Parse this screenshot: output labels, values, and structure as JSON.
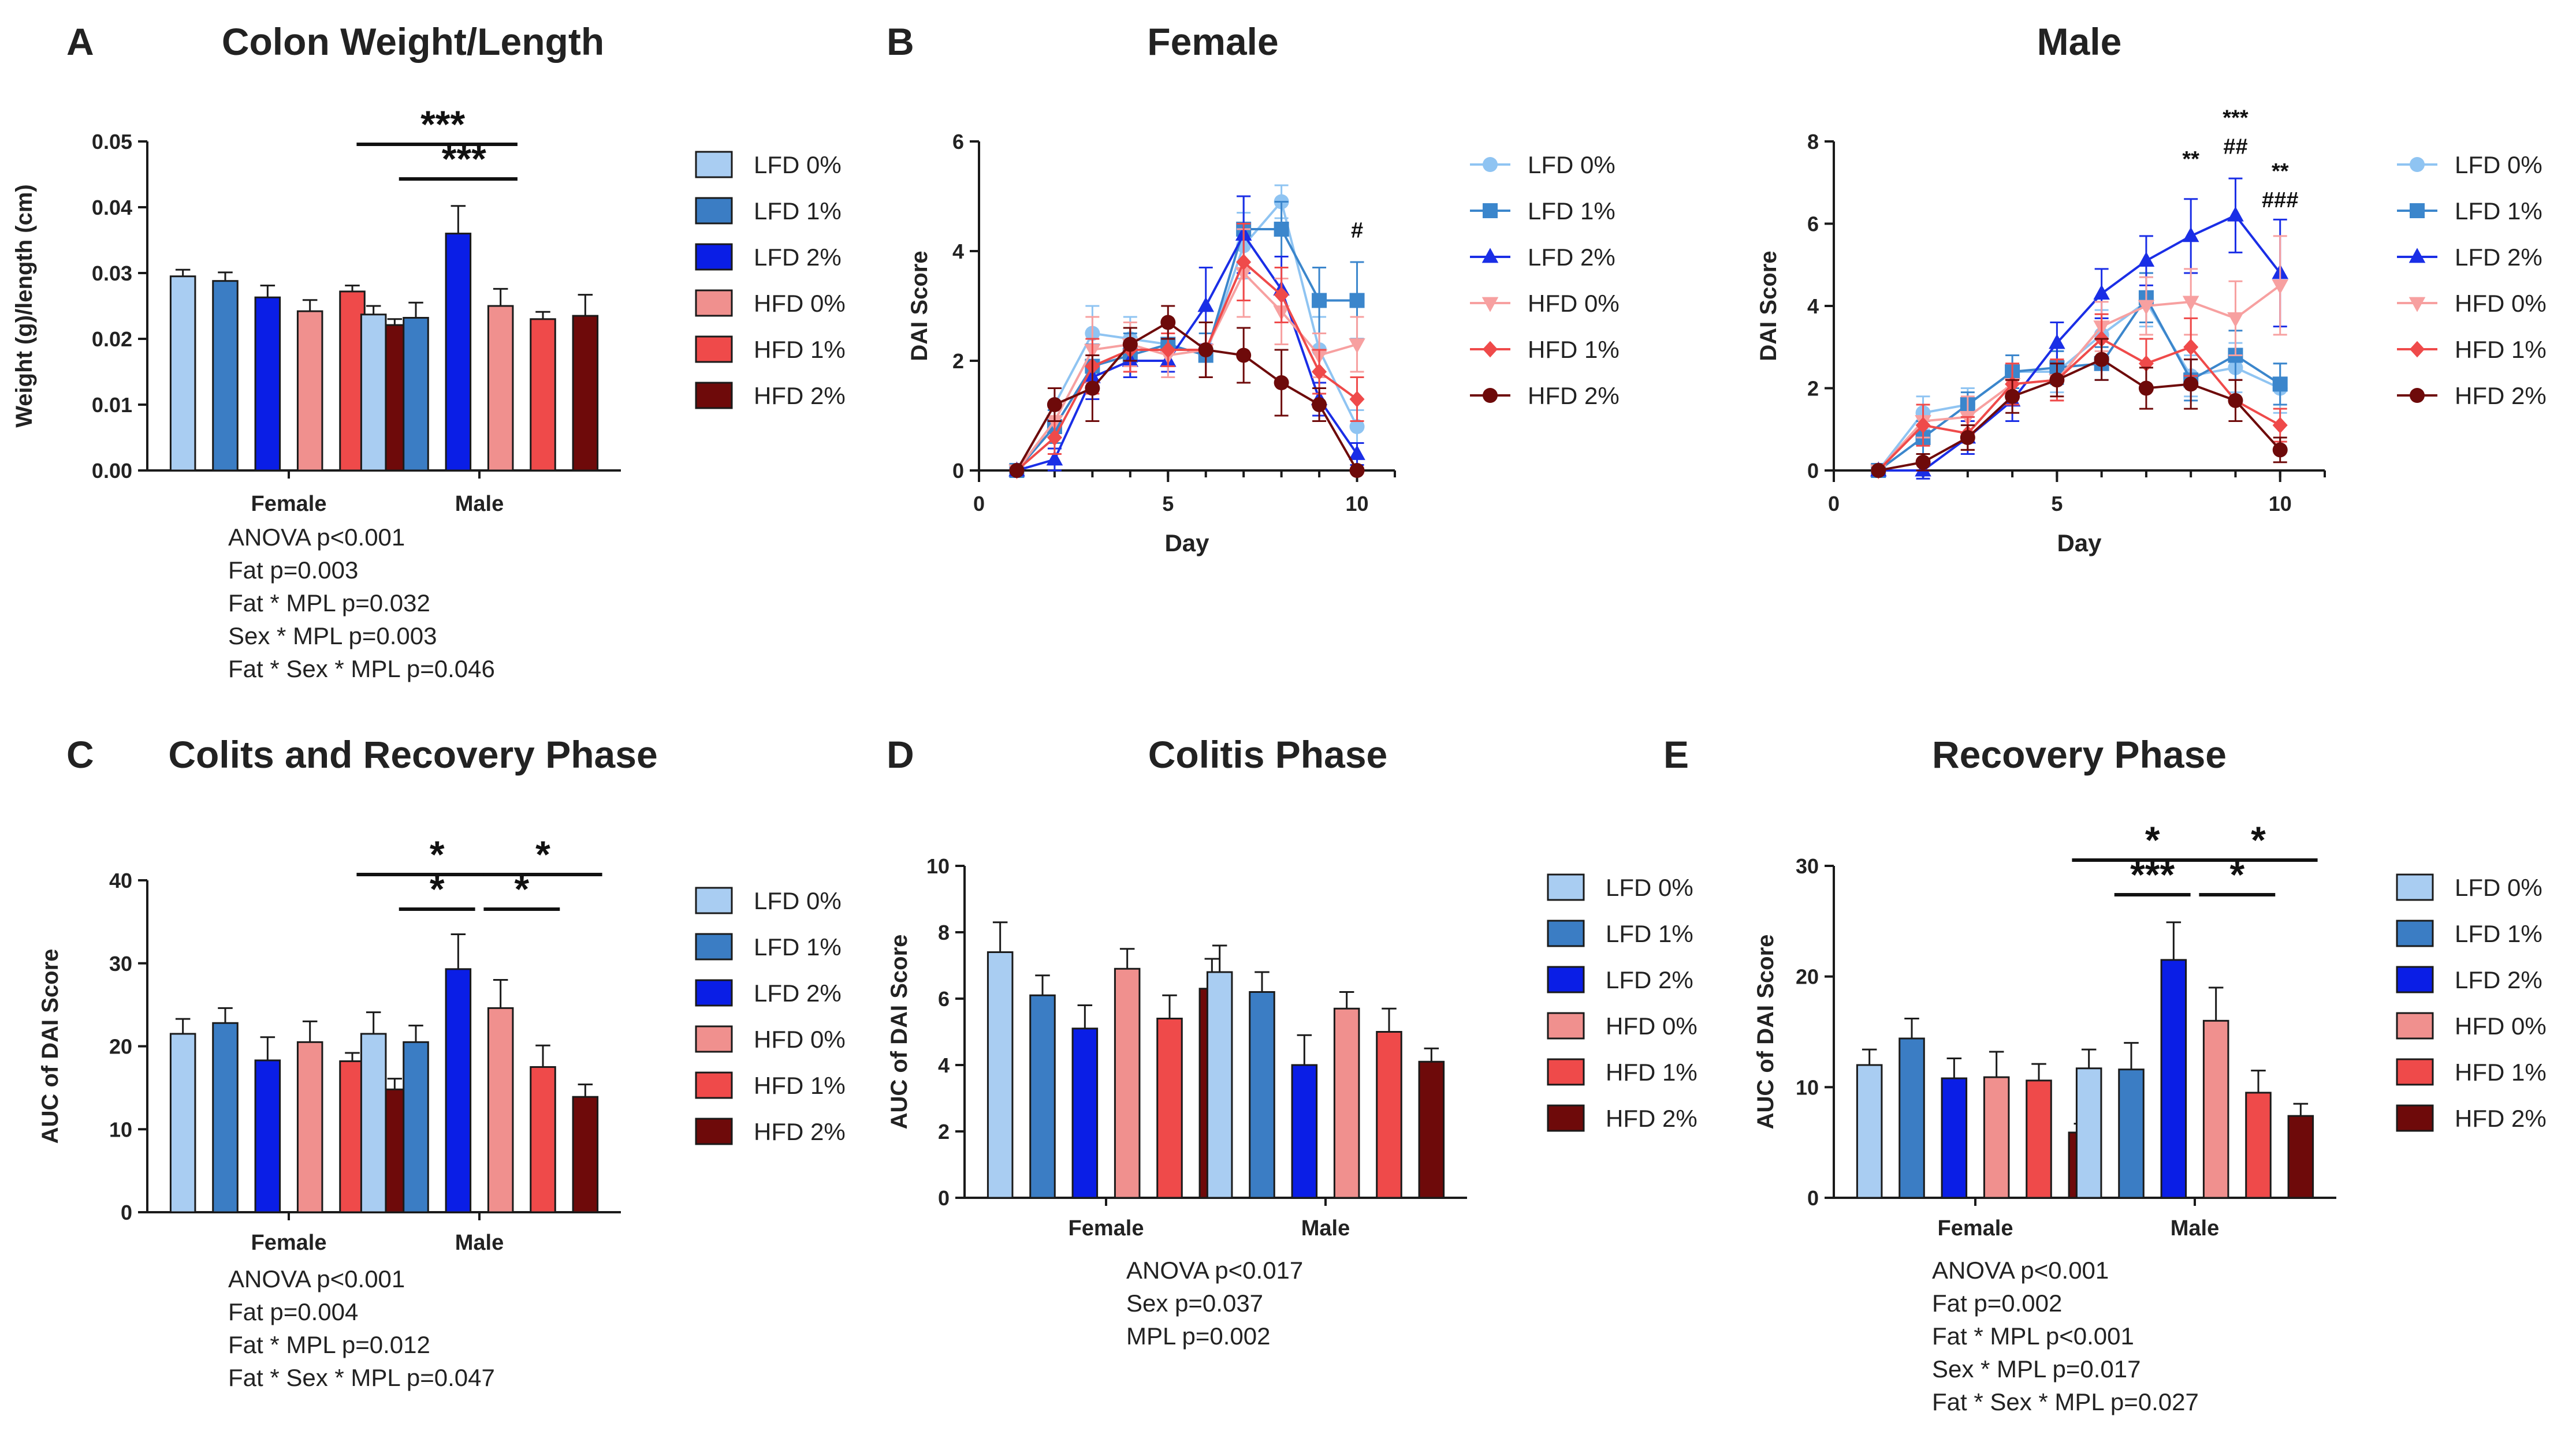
{
  "colors": {
    "LFD 0%": "#a9cdf2",
    "LFD 1%": "#3b7dc4",
    "LFD 2%": "#0a1ee6",
    "HFD 0%": "#f0908e",
    "HFD 1%": "#ef4a4a",
    "HFD 2%": "#6e0a0a"
  },
  "line_colors": {
    "LFD 0%": "#8fc4f2",
    "LFD 1%": "#3b86cc",
    "LFD 2%": "#1a2ee6",
    "HFD 0%": "#f7a0a0",
    "HFD 1%": "#ef4a4a",
    "HFD 2%": "#6e0a0a"
  },
  "chart_data": [
    {
      "id": "A",
      "panel_letter": "A",
      "type": "bar",
      "title": "Colon Weight/Length",
      "ylabel": "Weight (g)/length (cm)",
      "xlabel": "",
      "ylim": [
        0,
        0.05
      ],
      "yticks": [
        0,
        0.01,
        0.02,
        0.03,
        0.04,
        0.05
      ],
      "ytick_labels": [
        "0.00",
        "0.01",
        "0.02",
        "0.03",
        "0.04",
        "0.05"
      ],
      "categories": [
        "Female",
        "Male"
      ],
      "series": [
        {
          "name": "LFD 0%",
          "values": [
            0.0295,
            0.0237
          ],
          "errors": [
            0.001,
            0.0013
          ]
        },
        {
          "name": "LFD 1%",
          "values": [
            0.0288,
            0.0232
          ],
          "errors": [
            0.0013,
            0.0023
          ]
        },
        {
          "name": "LFD 2%",
          "values": [
            0.0263,
            0.036
          ],
          "errors": [
            0.0018,
            0.0042
          ]
        },
        {
          "name": "HFD 0%",
          "values": [
            0.0242,
            0.025
          ],
          "errors": [
            0.0017,
            0.0026
          ]
        },
        {
          "name": "HFD 1%",
          "values": [
            0.0272,
            0.023
          ],
          "errors": [
            0.0009,
            0.0011
          ]
        },
        {
          "name": "HFD 2%",
          "values": [
            0.0221,
            0.0235
          ],
          "errors": [
            0.0009,
            0.0032
          ]
        }
      ],
      "significance": [
        {
          "label": "***",
          "from": [
            "Male",
            "LFD 0%"
          ],
          "to": [
            "Male",
            "HFD 0%"
          ],
          "level": 1
        },
        {
          "label": "***",
          "from": [
            "Male",
            "LFD 1%"
          ],
          "to": [
            "Male",
            "HFD 0%"
          ],
          "level": 0
        }
      ],
      "stats": [
        "ANOVA p<0.001",
        "Fat p=0.003",
        "Fat * MPL p=0.032",
        "Sex * MPL p=0.003",
        "Fat * Sex * MPL p=0.046"
      ],
      "legend": [
        "LFD 0%",
        "LFD 1%",
        "LFD 2%",
        "HFD 0%",
        "HFD 1%",
        "HFD 2%"
      ]
    },
    {
      "id": "B1",
      "panel_letter": "B",
      "type": "line",
      "title": "Female",
      "xlabel": "Day",
      "ylabel": "DAI Score",
      "xlim": [
        0,
        11
      ],
      "ylim": [
        0,
        6
      ],
      "xticks": [
        0,
        5,
        10
      ],
      "yticks": [
        0,
        2,
        4,
        6
      ],
      "x": [
        1,
        2,
        3,
        4,
        5,
        6,
        7,
        8,
        9,
        10
      ],
      "series": [
        {
          "name": "LFD 0%",
          "marker": "circle",
          "values": [
            0,
            1.2,
            2.5,
            2.4,
            2.3,
            2.1,
            4.1,
            4.9,
            2.2,
            0.8
          ],
          "errors": [
            0,
            0.3,
            0.5,
            0.4,
            0.4,
            0.4,
            0.6,
            0.3,
            0.6,
            0.3
          ]
        },
        {
          "name": "LFD 1%",
          "marker": "square",
          "values": [
            0,
            0.8,
            1.9,
            2.1,
            2.3,
            2.1,
            4.4,
            4.4,
            3.1,
            3.1
          ],
          "errors": [
            0,
            0.3,
            0.4,
            0.4,
            0.4,
            0.4,
            0.6,
            0.5,
            0.6,
            0.7
          ]
        },
        {
          "name": "LFD 2%",
          "marker": "triangle",
          "values": [
            0,
            0.2,
            1.7,
            2.0,
            2.0,
            3.0,
            4.3,
            3.3,
            1.3,
            0.3
          ],
          "errors": [
            0,
            0.2,
            0.4,
            0.3,
            0.2,
            0.7,
            0.7,
            0.6,
            0.3,
            0.2
          ]
        },
        {
          "name": "HFD 0%",
          "marker": "triangle-down",
          "values": [
            0,
            0.9,
            2.2,
            2.3,
            2.1,
            2.2,
            3.6,
            2.9,
            2.1,
            2.3
          ],
          "errors": [
            0,
            0.3,
            0.6,
            0.4,
            0.4,
            0.5,
            0.8,
            0.6,
            0.4,
            0.5
          ]
        },
        {
          "name": "HFD 1%",
          "marker": "diamond",
          "values": [
            0,
            0.6,
            1.9,
            2.2,
            2.2,
            2.2,
            3.8,
            3.2,
            1.8,
            1.3
          ],
          "errors": [
            0,
            0.3,
            0.5,
            0.4,
            0.3,
            0.5,
            0.7,
            0.5,
            0.4,
            0.4
          ]
        },
        {
          "name": "HFD 2%",
          "marker": "circle",
          "values": [
            0,
            1.2,
            1.5,
            2.3,
            2.7,
            2.2,
            2.1,
            1.6,
            1.2,
            0
          ],
          "errors": [
            0,
            0.3,
            0.6,
            0.3,
            0.3,
            0.5,
            0.5,
            0.6,
            0.3,
            0
          ]
        }
      ],
      "annotations": [
        {
          "label": "#",
          "x": 10,
          "y": 4.25
        }
      ],
      "legend": [
        "LFD 0%",
        "LFD 1%",
        "LFD 2%",
        "HFD 0%",
        "HFD 1%",
        "HFD 2%"
      ]
    },
    {
      "id": "B2",
      "panel_letter": "",
      "type": "line",
      "title": "Male",
      "xlabel": "Day",
      "ylabel": "DAI Score",
      "xlim": [
        0,
        11
      ],
      "ylim": [
        0,
        8
      ],
      "xticks": [
        0,
        5,
        10
      ],
      "yticks": [
        0,
        2,
        4,
        6,
        8
      ],
      "x": [
        1,
        2,
        3,
        4,
        5,
        6,
        7,
        8,
        9,
        10
      ],
      "series": [
        {
          "name": "LFD 0%",
          "marker": "circle",
          "values": [
            0,
            1.4,
            1.6,
            2.4,
            2.4,
            3.3,
            4.1,
            2.3,
            2.5,
            2.0
          ],
          "errors": [
            0,
            0.4,
            0.4,
            0.4,
            0.5,
            0.6,
            0.6,
            0.5,
            0.6,
            0.6
          ]
        },
        {
          "name": "LFD 1%",
          "marker": "square",
          "values": [
            0,
            0.8,
            1.6,
            2.4,
            2.5,
            2.6,
            4.2,
            2.2,
            2.8,
            2.1
          ],
          "errors": [
            0,
            0.4,
            0.3,
            0.4,
            0.4,
            0.4,
            0.6,
            0.5,
            0.6,
            0.5
          ]
        },
        {
          "name": "LFD 2%",
          "marker": "triangle",
          "values": [
            0,
            0,
            0.8,
            1.7,
            3.1,
            4.3,
            5.1,
            5.7,
            6.2,
            4.8
          ],
          "errors": [
            0,
            0.2,
            0.4,
            0.5,
            0.5,
            0.6,
            0.6,
            0.9,
            0.9,
            1.3
          ]
        },
        {
          "name": "HFD 0%",
          "marker": "triangle-down",
          "values": [
            0,
            1.2,
            1.3,
            2.1,
            2.2,
            3.5,
            4.0,
            4.1,
            3.7,
            4.5
          ],
          "errors": [
            0,
            0.4,
            0.5,
            0.5,
            0.5,
            0.6,
            0.7,
            0.8,
            0.9,
            1.2
          ]
        },
        {
          "name": "HFD 1%",
          "marker": "diamond",
          "values": [
            0,
            1.1,
            0.9,
            2.1,
            2.2,
            3.2,
            2.6,
            3.0,
            1.7,
            1.1
          ],
          "errors": [
            0,
            0.5,
            0.4,
            0.5,
            0.5,
            0.6,
            0.6,
            0.7,
            0.5,
            0.4
          ]
        },
        {
          "name": "HFD 2%",
          "marker": "circle",
          "values": [
            0,
            0.2,
            0.8,
            1.8,
            2.2,
            2.7,
            2.0,
            2.1,
            1.7,
            0.5
          ],
          "errors": [
            0,
            0.2,
            0.3,
            0.4,
            0.4,
            0.5,
            0.5,
            0.6,
            0.5,
            0.3
          ]
        }
      ],
      "annotations": [
        {
          "label": "**",
          "x": 8,
          "y": 7.4
        },
        {
          "label": "***",
          "x": 9,
          "y": 8.4
        },
        {
          "label": "##",
          "x": 9,
          "y": 7.7
        },
        {
          "label": "**",
          "x": 10,
          "y": 7.1
        },
        {
          "label": "###",
          "x": 10,
          "y": 6.4
        }
      ],
      "legend": [
        "LFD 0%",
        "LFD 1%",
        "LFD 2%",
        "HFD 0%",
        "HFD 1%",
        "HFD 2%"
      ]
    },
    {
      "id": "C",
      "panel_letter": "C",
      "type": "bar",
      "title": "Colits and Recovery Phase",
      "ylabel": "AUC of DAI Score",
      "xlabel": "",
      "ylim": [
        0,
        40
      ],
      "yticks": [
        0,
        10,
        20,
        30,
        40
      ],
      "ytick_labels": [
        "0",
        "10",
        "20",
        "30",
        "40"
      ],
      "categories": [
        "Female",
        "Male"
      ],
      "series": [
        {
          "name": "LFD 0%",
          "values": [
            21.5,
            21.5
          ],
          "errors": [
            1.8,
            2.6
          ]
        },
        {
          "name": "LFD 1%",
          "values": [
            22.8,
            20.5
          ],
          "errors": [
            1.8,
            2.0
          ]
        },
        {
          "name": "LFD 2%",
          "values": [
            18.3,
            29.3
          ],
          "errors": [
            2.8,
            4.2
          ]
        },
        {
          "name": "HFD 0%",
          "values": [
            20.5,
            24.6
          ],
          "errors": [
            2.5,
            3.4
          ]
        },
        {
          "name": "HFD 1%",
          "values": [
            18.2,
            17.5
          ],
          "errors": [
            1.0,
            2.6
          ]
        },
        {
          "name": "HFD 2%",
          "values": [
            14.8,
            13.9
          ],
          "errors": [
            1.3,
            1.5
          ]
        }
      ],
      "significance": [
        {
          "label": "*",
          "from": [
            "Male",
            "LFD 0%"
          ],
          "to": [
            "Male",
            "HFD 0%"
          ],
          "level": 1
        },
        {
          "label": "*",
          "from": [
            "Male",
            "LFD 1%"
          ],
          "to": [
            "Male",
            "LFD 2%"
          ],
          "level": 0
        },
        {
          "label": "*",
          "from": [
            "Male",
            "HFD 0%"
          ],
          "to": [
            "Male",
            "HFD 2%"
          ],
          "level": 1
        },
        {
          "label": "*",
          "from": [
            "Male",
            "HFD 0%"
          ],
          "to": [
            "Male",
            "HFD 1%"
          ],
          "level": 0
        }
      ],
      "stats": [
        "ANOVA p<0.001",
        "Fat p=0.004",
        "Fat * MPL p=0.012",
        "Fat * Sex * MPL p=0.047"
      ],
      "legend": [
        "LFD 0%",
        "LFD 1%",
        "LFD 2%",
        "HFD 0%",
        "HFD 1%",
        "HFD 2%"
      ]
    },
    {
      "id": "D",
      "panel_letter": "D",
      "type": "bar",
      "title": "Colitis Phase",
      "ylabel": "AUC of DAI Score",
      "xlabel": "",
      "ylim": [
        0,
        10
      ],
      "yticks": [
        0,
        2,
        4,
        6,
        8,
        10
      ],
      "ytick_labels": [
        "0",
        "2",
        "4",
        "6",
        "8",
        "10"
      ],
      "categories": [
        "Female",
        "Male"
      ],
      "series": [
        {
          "name": "LFD 0%",
          "values": [
            7.4,
            6.8
          ],
          "errors": [
            0.9,
            0.8
          ]
        },
        {
          "name": "LFD 1%",
          "values": [
            6.1,
            6.2
          ],
          "errors": [
            0.6,
            0.6
          ]
        },
        {
          "name": "LFD 2%",
          "values": [
            5.1,
            4.0
          ],
          "errors": [
            0.7,
            0.9
          ]
        },
        {
          "name": "HFD 0%",
          "values": [
            6.9,
            5.7
          ],
          "errors": [
            0.6,
            0.5
          ]
        },
        {
          "name": "HFD 1%",
          "values": [
            5.4,
            5.0
          ],
          "errors": [
            0.7,
            0.7
          ]
        },
        {
          "name": "HFD 2%",
          "values": [
            6.3,
            4.1
          ],
          "errors": [
            0.9,
            0.4
          ]
        }
      ],
      "significance": [],
      "stats": [
        "ANOVA p<0.017",
        "Sex p=0.037",
        "MPL p=0.002"
      ],
      "legend": [
        "LFD 0%",
        "LFD 1%",
        "LFD 2%",
        "HFD 0%",
        "HFD 1%",
        "HFD 2%"
      ]
    },
    {
      "id": "E",
      "panel_letter": "E",
      "type": "bar",
      "title": "Recovery Phase",
      "ylabel": "AUC of DAI Score",
      "xlabel": "",
      "ylim": [
        0,
        30
      ],
      "yticks": [
        0,
        10,
        20,
        30
      ],
      "ytick_labels": [
        "0",
        "10",
        "20",
        "30"
      ],
      "categories": [
        "Female",
        "Male"
      ],
      "series": [
        {
          "name": "LFD 0%",
          "values": [
            12.0,
            11.7
          ],
          "errors": [
            1.4,
            1.7
          ]
        },
        {
          "name": "LFD 1%",
          "values": [
            14.4,
            11.6
          ],
          "errors": [
            1.8,
            2.4
          ]
        },
        {
          "name": "LFD 2%",
          "values": [
            10.8,
            21.5
          ],
          "errors": [
            1.8,
            3.4
          ]
        },
        {
          "name": "HFD 0%",
          "values": [
            10.9,
            16.0
          ],
          "errors": [
            2.3,
            3.0
          ]
        },
        {
          "name": "HFD 1%",
          "values": [
            10.6,
            9.5
          ],
          "errors": [
            1.5,
            2.0
          ]
        },
        {
          "name": "HFD 2%",
          "values": [
            5.9,
            7.4
          ],
          "errors": [
            0.8,
            1.1
          ]
        }
      ],
      "significance": [
        {
          "label": "*",
          "from": [
            "Male",
            "LFD 0%"
          ],
          "to": [
            "Male",
            "HFD 0%"
          ],
          "level": 1
        },
        {
          "label": "***",
          "from": [
            "Male",
            "LFD 1%"
          ],
          "to": [
            "Male",
            "LFD 2%"
          ],
          "level": 0
        },
        {
          "label": "*",
          "from": [
            "Male",
            "HFD 0%"
          ],
          "to": [
            "Male",
            "HFD 2%"
          ],
          "level": 1
        },
        {
          "label": "*",
          "from": [
            "Male",
            "HFD 0%"
          ],
          "to": [
            "Male",
            "HFD 1%"
          ],
          "level": 0
        }
      ],
      "stats": [
        "ANOVA p<0.001",
        "Fat p=0.002",
        "Fat * MPL p<0.001",
        "Sex * MPL p=0.017",
        "Fat * Sex * MPL p=0.027"
      ],
      "legend": [
        "LFD 0%",
        "LFD 1%",
        "LFD 2%",
        "HFD 0%",
        "HFD 1%",
        "HFD 2%"
      ]
    }
  ]
}
